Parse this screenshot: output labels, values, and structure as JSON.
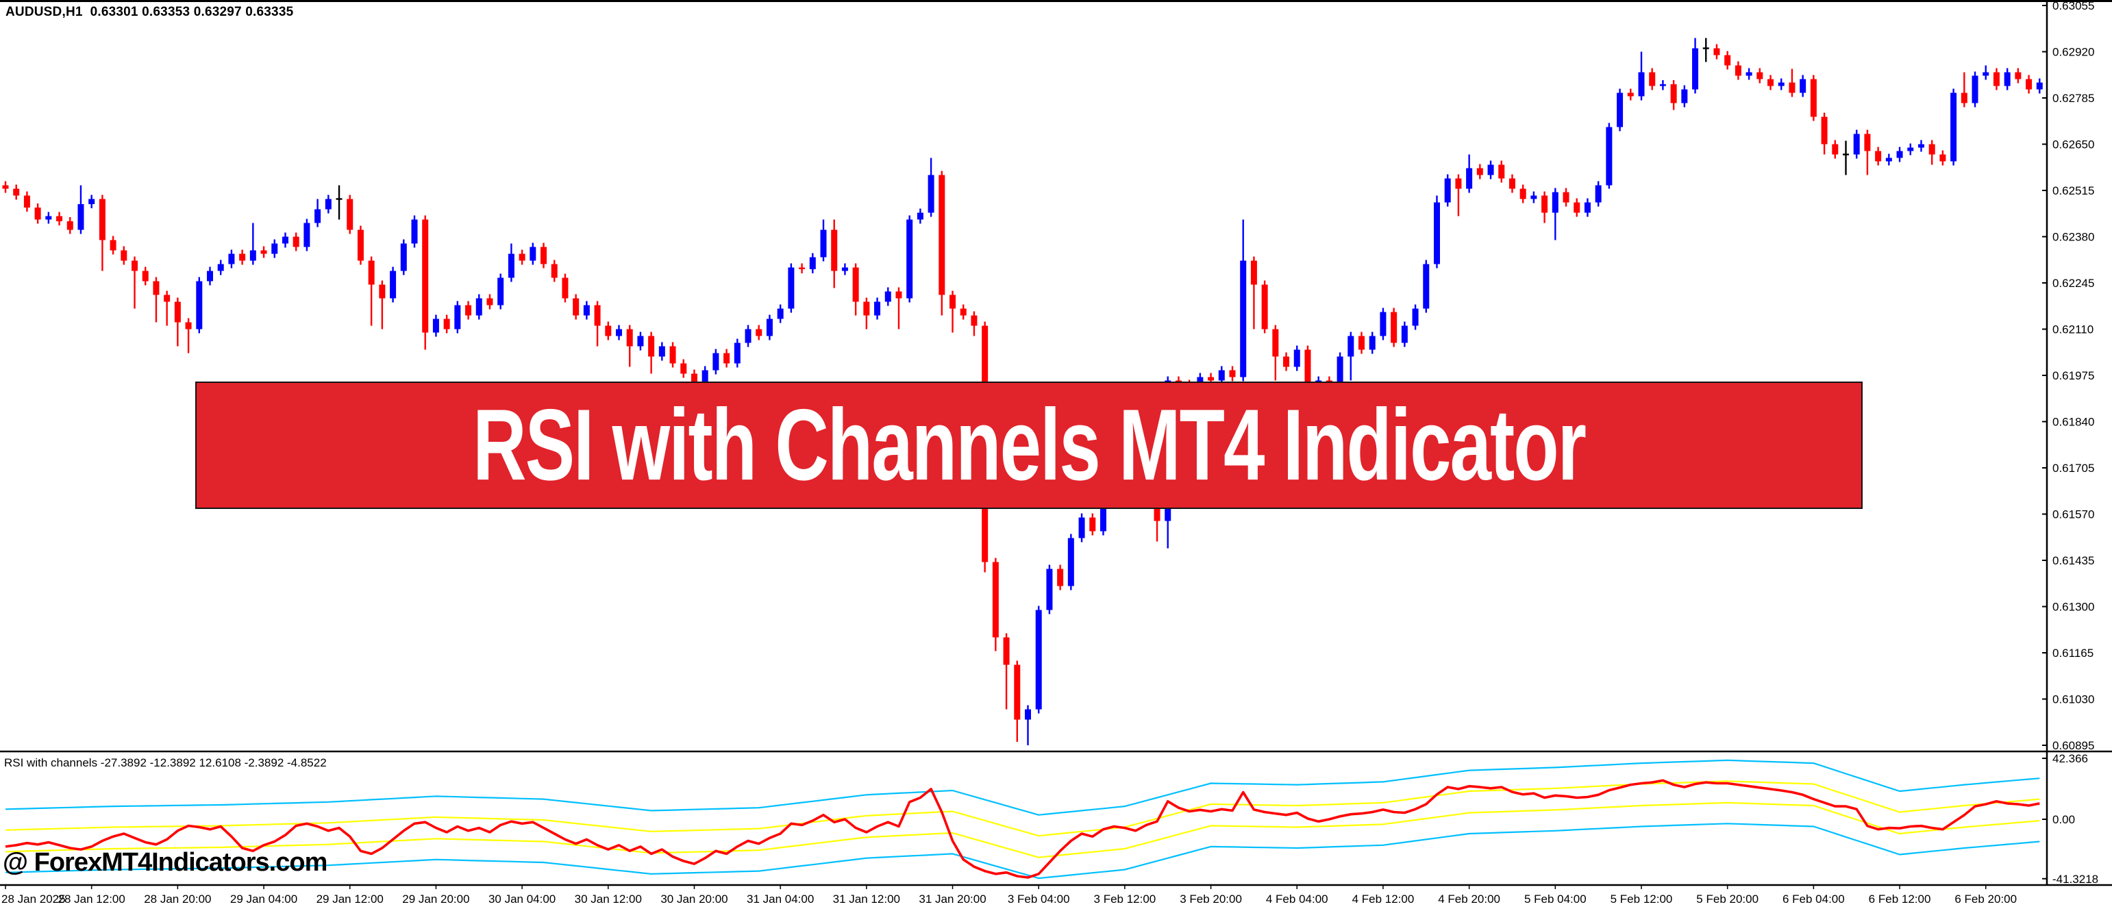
{
  "window": {
    "symbol_label": "AUDUSD,H1  0.63301 0.63353 0.63297 0.63335"
  },
  "banner": {
    "text": "RSI with Channels MT4 Indicator",
    "bg_color": "#E1232B",
    "text_color": "#FFFFFF"
  },
  "watermark": {
    "text": "@ ForexMT4Indicators.com"
  },
  "indicator_panel": {
    "label": "RSI with channels -27.3892 -12.3892 12.6108 -2.3892 -4.8522",
    "axis_labels": [
      "42.366",
      "0.00",
      "-41.3218"
    ],
    "axis_values": [
      42.366,
      0.0,
      -41.3218
    ]
  },
  "price_axis": {
    "labels": [
      "0.63055",
      "0.62920",
      "0.62785",
      "0.62650",
      "0.62515",
      "0.62380",
      "0.62245",
      "0.62110",
      "0.61975",
      "0.61840",
      "0.61705",
      "0.61570",
      "0.61435",
      "0.61300",
      "0.61165",
      "0.61030",
      "0.60895"
    ],
    "top_value": 0.63055,
    "step": 0.00135
  },
  "time_axis": {
    "labels": [
      "28 Jan 2025",
      "28 Jan 12:00",
      "28 Jan 20:00",
      "29 Jan 04:00",
      "29 Jan 12:00",
      "29 Jan 20:00",
      "30 Jan 04:00",
      "30 Jan 12:00",
      "30 Jan 20:00",
      "31 Jan 04:00",
      "31 Jan 12:00",
      "31 Jan 20:00",
      "3 Feb 04:00",
      "3 Feb 12:00",
      "3 Feb 20:00",
      "4 Feb 04:00",
      "4 Feb 12:00",
      "4 Feb 20:00",
      "5 Feb 04:00",
      "5 Feb 12:00",
      "5 Feb 20:00",
      "6 Feb 04:00",
      "6 Feb 12:00",
      "6 Feb 20:00"
    ],
    "bars_per_label": 8
  },
  "chart_data": [
    {
      "type": "candlestick",
      "title": "AUDUSD H1 price",
      "bull_color": "#0000FF",
      "bear_color": "#FF0000",
      "doji_color": "#000000",
      "first_open": 0.6253,
      "closes": [
        0.6252,
        0.625,
        0.62465,
        0.6243,
        0.6244,
        0.62425,
        0.624,
        0.62475,
        0.6249,
        0.6237,
        0.6234,
        0.6231,
        0.6228,
        0.6225,
        0.6221,
        0.6219,
        0.6213,
        0.6211,
        0.6225,
        0.6228,
        0.623,
        0.6233,
        0.6231,
        0.6234,
        0.6233,
        0.6236,
        0.6238,
        0.6235,
        0.6242,
        0.6246,
        0.6249,
        0.6249,
        0.624,
        0.6231,
        0.6224,
        0.622,
        0.6228,
        0.6236,
        0.6243,
        0.621,
        0.6214,
        0.6211,
        0.6218,
        0.6215,
        0.622,
        0.6218,
        0.6226,
        0.6233,
        0.6231,
        0.6235,
        0.623,
        0.6226,
        0.622,
        0.6215,
        0.6218,
        0.6212,
        0.6209,
        0.6211,
        0.6206,
        0.6209,
        0.6203,
        0.6206,
        0.6201,
        0.6198,
        0.6195,
        0.6199,
        0.6204,
        0.6201,
        0.6207,
        0.6211,
        0.6209,
        0.6214,
        0.6217,
        0.6229,
        0.62285,
        0.6232,
        0.624,
        0.6228,
        0.6229,
        0.6219,
        0.6215,
        0.6219,
        0.6222,
        0.622,
        0.6243,
        0.6245,
        0.6256,
        0.6221,
        0.6217,
        0.6215,
        0.6212,
        0.6143,
        0.6121,
        0.6113,
        0.6097,
        0.61,
        0.6129,
        0.6141,
        0.6136,
        0.615,
        0.6156,
        0.6152,
        0.6162,
        0.6168,
        0.6174,
        0.6169,
        0.6162,
        0.6155,
        0.6196,
        0.6195,
        0.6193,
        0.6197,
        0.6196,
        0.6199,
        0.6197,
        0.6231,
        0.6224,
        0.6211,
        0.6203,
        0.62,
        0.6205,
        0.6195,
        0.6196,
        0.6194,
        0.6203,
        0.6209,
        0.6205,
        0.6209,
        0.6216,
        0.6207,
        0.6212,
        0.6217,
        0.623,
        0.6248,
        0.6255,
        0.6252,
        0.6258,
        0.6256,
        0.6259,
        0.6255,
        0.6252,
        0.6249,
        0.625,
        0.6245,
        0.6251,
        0.6248,
        0.6245,
        0.6248,
        0.6253,
        0.627,
        0.628,
        0.6279,
        0.6286,
        0.6282,
        0.62825,
        0.6277,
        0.6281,
        0.6293,
        0.6293,
        0.6291,
        0.6288,
        0.6285,
        0.6286,
        0.6284,
        0.6282,
        0.6283,
        0.628,
        0.6284,
        0.6273,
        0.6265,
        0.6262,
        0.6262,
        0.6268,
        0.6263,
        0.626,
        0.6261,
        0.6263,
        0.6264,
        0.6265,
        0.6262,
        0.626,
        0.628,
        0.6277,
        0.6285,
        0.6286,
        0.6282,
        0.6286,
        0.6284,
        0.6281,
        0.6283
      ],
      "wick_overrides": {
        "7": [
          0.6253,
          null
        ],
        "9": [
          null,
          0.6228
        ],
        "12": [
          null,
          0.6217
        ],
        "14": [
          null,
          0.6213
        ],
        "15": [
          null,
          0.6212
        ],
        "16": [
          null,
          0.6206
        ],
        "17": [
          null,
          0.6204
        ],
        "23": [
          0.6242,
          null
        ],
        "29": [
          0.6249,
          null
        ],
        "31": [
          0.6253,
          0.6243
        ],
        "34": [
          null,
          0.6212
        ],
        "35": [
          null,
          0.6211
        ],
        "39": [
          null,
          0.6205
        ],
        "47": [
          0.6236,
          null
        ],
        "55": [
          null,
          0.6206
        ],
        "58": [
          null,
          0.62
        ],
        "60": [
          null,
          0.6198
        ],
        "64": [
          null,
          0.6187
        ],
        "65": [
          null,
          0.6189
        ],
        "76": [
          0.6243,
          null
        ],
        "77": [
          0.6243,
          0.6223
        ],
        "79": [
          null,
          0.6215
        ],
        "80": [
          null,
          0.6211
        ],
        "83": [
          null,
          0.6211
        ],
        "86": [
          0.6261,
          null
        ],
        "87": [
          null,
          0.6215
        ],
        "88": [
          null,
          0.621
        ],
        "90": [
          null,
          0.6209
        ],
        "91": [
          null,
          0.614
        ],
        "92": [
          null,
          0.6117
        ],
        "93": [
          null,
          0.61
        ],
        "94": [
          null,
          0.60905
        ],
        "95": [
          null,
          0.60895
        ],
        "107": [
          null,
          0.6149
        ],
        "108": [
          null,
          0.6147
        ],
        "115": [
          0.6243,
          null
        ],
        "116": [
          null,
          0.6211
        ],
        "118": [
          null,
          0.6196
        ],
        "121": [
          null,
          0.6189
        ],
        "125": [
          null,
          0.6196
        ],
        "133": [
          0.625,
          null
        ],
        "135": [
          null,
          0.6244
        ],
        "136": [
          0.6262,
          null
        ],
        "143": [
          null,
          0.6242
        ],
        "144": [
          null,
          0.6237
        ],
        "149": [
          null,
          0.6252
        ],
        "152": [
          0.6292,
          null
        ],
        "155": [
          null,
          0.6275
        ],
        "157": [
          0.6296,
          null
        ],
        "158": [
          0.6296,
          0.6289
        ],
        "166": [
          0.6287,
          null
        ],
        "169": [
          null,
          0.6262
        ],
        "171": [
          0.6266,
          0.6256
        ],
        "173": [
          null,
          0.6256
        ],
        "179": [
          null,
          0.6259
        ],
        "182": [
          0.6286,
          null
        ],
        "184": [
          0.6288,
          null
        ]
      }
    },
    {
      "type": "line",
      "title": "RSI with channels",
      "ylim": [
        -41.3218,
        42.366
      ],
      "series_colors": {
        "rsi": "#FF0000",
        "inner_band": "#FFFF00",
        "outer_band": "#00BFFF"
      },
      "rsi_values": [
        -19,
        -18,
        -16.5,
        -17.5,
        -16,
        -18,
        -20,
        -21,
        -19,
        -15,
        -12,
        -10,
        -13,
        -16,
        -17.5,
        -14,
        -8,
        -4.5,
        -5.5,
        -7,
        -5,
        -12,
        -20,
        -22,
        -18,
        -15.5,
        -11,
        -4.5,
        -3,
        -5,
        -8,
        -6,
        -12,
        -22,
        -24,
        -20,
        -14,
        -8,
        -3,
        -2,
        -6,
        -9,
        -5,
        -8,
        -6,
        -9,
        -4,
        -1.5,
        -3,
        -2,
        -6,
        -10,
        -14,
        -17,
        -14,
        -18,
        -21,
        -18,
        -22,
        -19,
        -24,
        -21,
        -26,
        -29,
        -31,
        -27,
        -22,
        -24,
        -19,
        -15,
        -17,
        -13,
        -10,
        -3,
        -4,
        -1,
        3,
        -2,
        0,
        -6,
        -9,
        -5,
        -2,
        -5,
        12,
        15,
        21,
        5,
        -15,
        -28,
        -33,
        -36,
        -38,
        -37,
        -39.5,
        -40.5,
        -38,
        -30,
        -22,
        -15,
        -10,
        -12,
        -7,
        -5,
        -6,
        -8,
        -4,
        -1.5,
        12.5,
        8,
        5.5,
        6.5,
        5.5,
        7,
        6,
        18.8,
        6.7,
        5,
        4,
        3,
        4.5,
        0.5,
        -1.5,
        0,
        2,
        3.5,
        4,
        5,
        6.7,
        5,
        4.5,
        7,
        10.5,
        17.3,
        22.4,
        21,
        23,
        22.4,
        21.5,
        22.4,
        19,
        17.3,
        18,
        15,
        16.5,
        16,
        15,
        15.5,
        17,
        20.2,
        22,
        24,
        25,
        25.6,
        27,
        24,
        22.4,
        24.5,
        25.6,
        25,
        25,
        24,
        23,
        22,
        21,
        20,
        18.8,
        17,
        14,
        11.5,
        9,
        9,
        7,
        -4.6,
        -7,
        -6,
        -6.3,
        -5,
        -4.6,
        -6,
        -7,
        -2,
        2.9,
        9,
        10.5,
        12.5,
        11,
        10.5,
        9.5,
        11
      ],
      "channel_center": {
        "x": [
          0,
          10,
          20,
          30,
          40,
          50,
          60,
          70,
          80,
          88,
          96,
          104,
          112,
          120,
          128,
          136,
          144,
          152,
          160,
          168,
          176,
          182,
          189
        ],
        "v": [
          -15,
          -13,
          -12,
          -10,
          -6,
          -8,
          -16,
          -14,
          -5,
          -2,
          -19,
          -13,
          3,
          2,
          4,
          12,
          14,
          17,
          19,
          17,
          -2.5,
          2,
          6.5
        ]
      },
      "inner_band_offset": 7.5,
      "outer_band_offset": 22
    }
  ]
}
